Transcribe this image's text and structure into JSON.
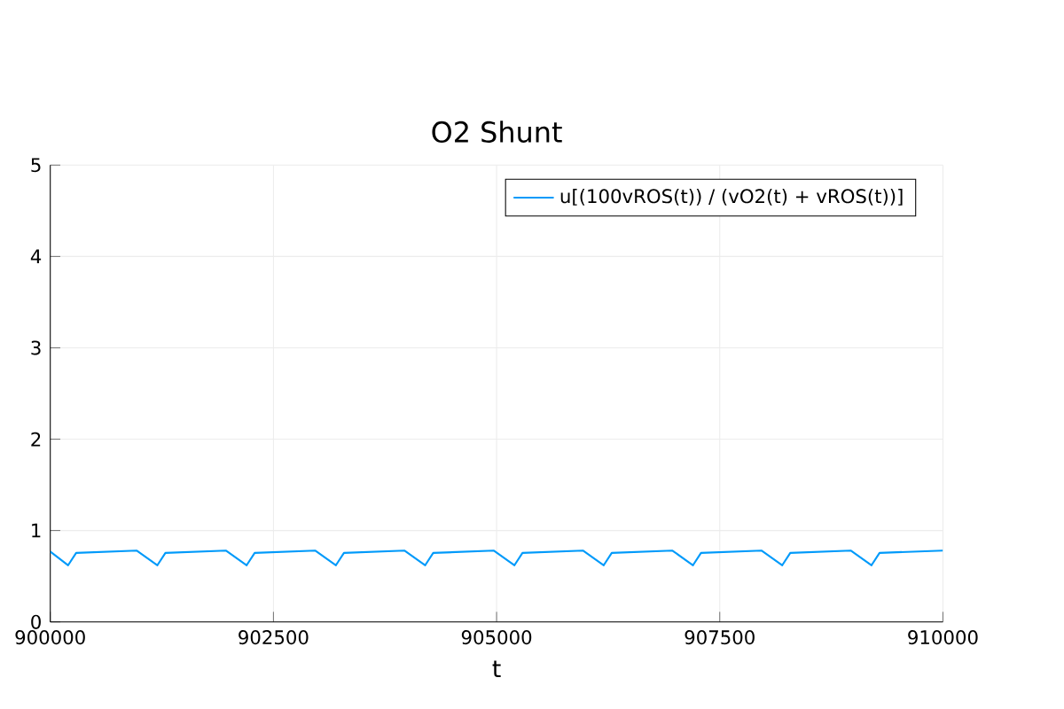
{
  "chart_data": {
    "type": "line",
    "title": "O2 Shunt",
    "xlabel": "t",
    "x": [
      900000,
      900200,
      900290,
      900970,
      901200,
      901290,
      901970,
      902200,
      902290,
      902970,
      903200,
      903290,
      903970,
      904200,
      904290,
      904970,
      905200,
      905290,
      905970,
      906200,
      906290,
      906970,
      907200,
      907290,
      907970,
      908200,
      908290,
      908970,
      909200,
      909290,
      910000
    ],
    "series": [
      {
        "name": "u[(100vROS(t)) / (vO2(t) + vROS(t))]",
        "color": "#009afa",
        "values": [
          0.77,
          0.62,
          0.755,
          0.78,
          0.62,
          0.755,
          0.78,
          0.62,
          0.755,
          0.78,
          0.62,
          0.755,
          0.78,
          0.62,
          0.755,
          0.78,
          0.62,
          0.755,
          0.78,
          0.62,
          0.755,
          0.78,
          0.62,
          0.755,
          0.78,
          0.62,
          0.755,
          0.78,
          0.62,
          0.755,
          0.78
        ]
      }
    ],
    "xlim": [
      900000,
      910000
    ],
    "xticks": [
      900000,
      902500,
      905000,
      907500,
      910000
    ],
    "ylim": [
      0,
      5
    ],
    "yticks": [
      0,
      1,
      2,
      3,
      4,
      5
    ],
    "grid": true,
    "legend": "top right",
    "marker": "none",
    "line_style": "solid"
  }
}
